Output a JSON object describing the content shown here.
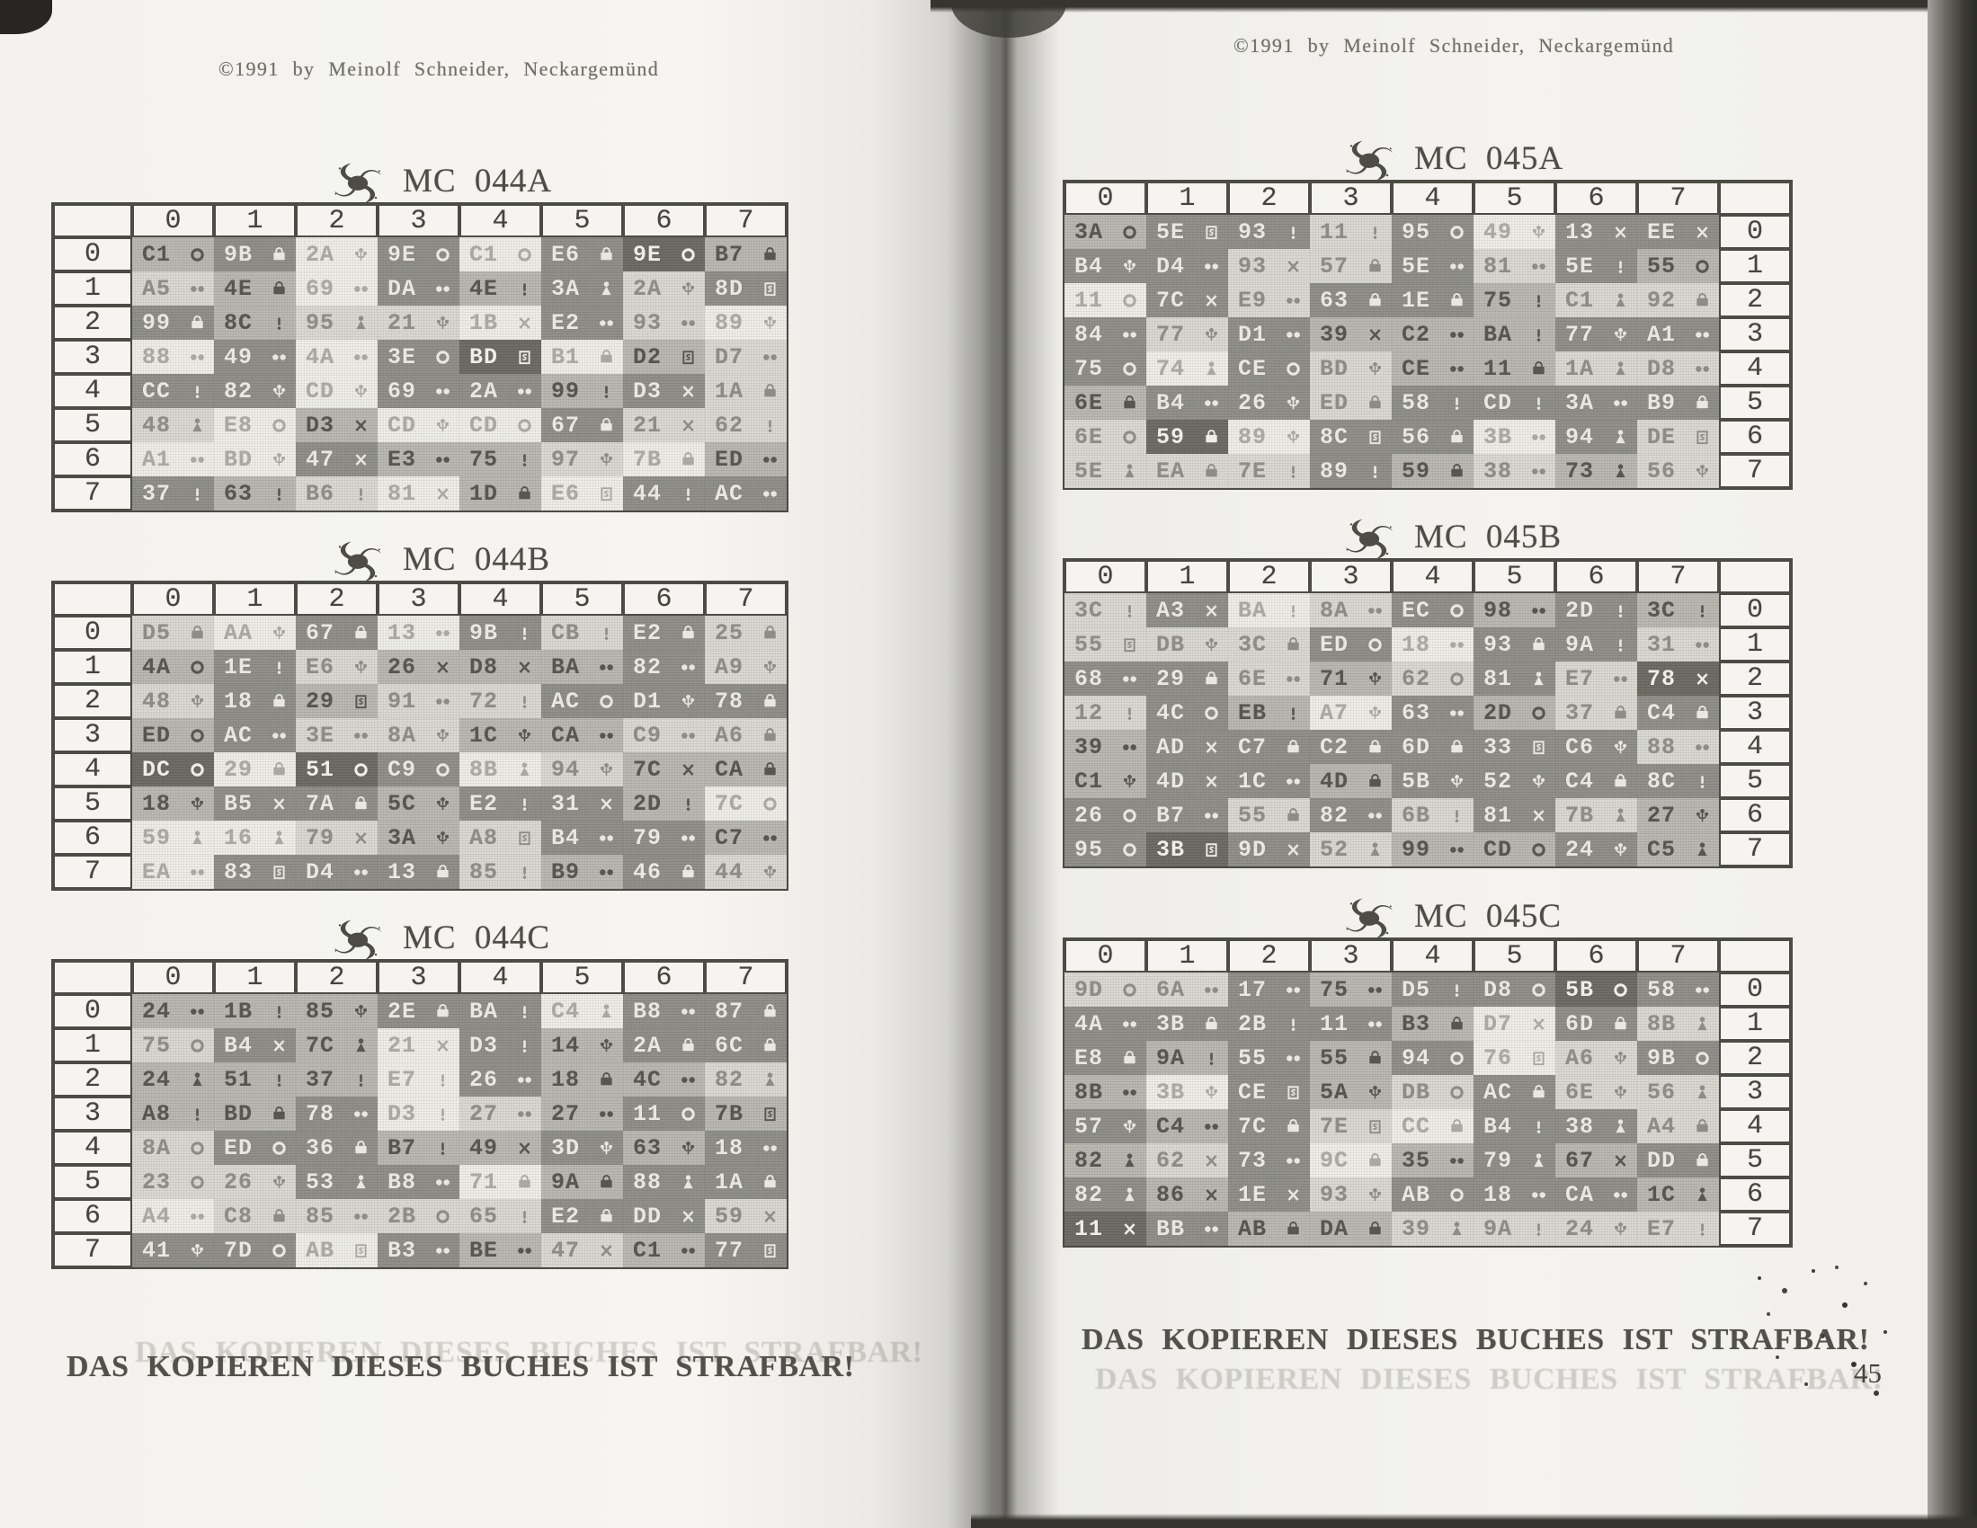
{
  "copyright_left": "©1991 by Meinolf Schneider, Neckargemünd",
  "copyright_right": "©1991 by Meinolf Schneider, Neckargemünd",
  "footer_left": "DAS KOPIEREN DIESES BUCHES IST STRAFBAR!",
  "footer_right": "DAS KOPIEREN DIESES BUCHES IST STRAFBAR!",
  "page_number": "45",
  "col_headers": [
    "0",
    "1",
    "2",
    "3",
    "4",
    "5",
    "6",
    "7"
  ],
  "row_headers": [
    "0",
    "1",
    "2",
    "3",
    "4",
    "5",
    "6",
    "7"
  ],
  "shade_colors": {
    "s0": "#eeede7",
    "s1": "#d8d7d0",
    "s2": "#b6b5ae",
    "s3": "#8c8b85",
    "s4": "#67665f"
  },
  "tables": [
    {
      "title": "MC 044A",
      "label_side": "left",
      "rows": [
        [
          "C1|ring|2",
          "9B|case|3",
          "2A|flower|0",
          "9E|ring|3",
          "C1|ring|0",
          "E6|case|3",
          "9E|ring|4",
          "B7|case|2"
        ],
        [
          "A5|pair|1",
          "4E|case|2",
          "69|pair|0",
          "DA|pair|3",
          "4E|pin|2",
          "3A|figure|3",
          "2A|flower|1",
          "8D|doc|3"
        ],
        [
          "99|case|3",
          "8C|pin|2",
          "95|figure|1",
          "21|flower|1",
          "1B|cross|0",
          "E2|pair|3",
          "93|pair|1",
          "89|flower|0"
        ],
        [
          "88|pair|0",
          "49|pair|3",
          "4A|pair|0",
          "3E|ring|3",
          "BD|doc|4",
          "B1|case|0",
          "D2|doc|2",
          "D7|pair|1"
        ],
        [
          "CC|pin|3",
          "82|flower|3",
          "CD|flower|0",
          "69|pair|3",
          "2A|pair|3",
          "99|pin|2",
          "D3|cross|3",
          "1A|case|1"
        ],
        [
          "48|figure|1",
          "E8|ring|0",
          "D3|cross|2",
          "CD|flower|0",
          "CD|ring|0",
          "67|case|3",
          "21|cross|1",
          "62|pin|1"
        ],
        [
          "A1|pair|0",
          "BD|flower|0",
          "47|cross|3",
          "E3|pair|2",
          "75|pin|2",
          "97|flower|1",
          "7B|case|0",
          "ED|pair|2"
        ],
        [
          "37|pin|3",
          "63|pin|2",
          "B6|pin|1",
          "81|cross|0",
          "1D|case|2",
          "E6|doc|0",
          "44|pin|3",
          "AC|pair|3"
        ]
      ]
    },
    {
      "title": "MC 044B",
      "label_side": "left",
      "rows": [
        [
          "D5|case|1",
          "AA|flower|0",
          "67|case|3",
          "13|pair|0",
          "9B|pin|3",
          "CB|pin|1",
          "E2|case|3",
          "25|case|1"
        ],
        [
          "4A|ring|2",
          "1E|pin|3",
          "E6|flower|1",
          "26|cross|2",
          "D8|cross|2",
          "BA|pair|2",
          "82|pair|3",
          "A9|flower|1"
        ],
        [
          "48|flower|1",
          "18|case|3",
          "29|doc|2",
          "91|pair|1",
          "72|pin|1",
          "AC|ring|3",
          "D1|flower|3",
          "78|case|3"
        ],
        [
          "ED|ring|2",
          "AC|pair|3",
          "3E|pair|1",
          "8A|flower|1",
          "1C|flower|2",
          "CA|pair|2",
          "C9|pair|1",
          "A6|case|1"
        ],
        [
          "DC|ring|4",
          "29|case|0",
          "51|ring|4",
          "C9|ring|3",
          "8B|figure|0",
          "94|flower|1",
          "7C|cross|2",
          "CA|case|2"
        ],
        [
          "18|flower|2",
          "B5|cross|3",
          "7A|case|3",
          "5C|flower|2",
          "E2|pin|3",
          "31|cross|3",
          "2D|pin|2",
          "7C|ring|0"
        ],
        [
          "59|figure|0",
          "16|figure|0",
          "79|cross|1",
          "3A|flower|2",
          "A8|doc|1",
          "B4|pair|3",
          "79|pair|3",
          "C7|pair|2"
        ],
        [
          "EA|pair|0",
          "83|doc|3",
          "D4|pair|3",
          "13|case|3",
          "85|pin|1",
          "B9|pair|2",
          "46|case|3",
          "44|flower|1"
        ]
      ]
    },
    {
      "title": "MC 044C",
      "label_side": "left",
      "rows": [
        [
          "24|pair|2",
          "1B|pin|2",
          "85|flower|2",
          "2E|case|3",
          "BA|pin|3",
          "C4|figure|0",
          "B8|pair|3",
          "87|case|3"
        ],
        [
          "75|ring|1",
          "B4|cross|3",
          "7C|figure|2",
          "21|cross|0",
          "D3|pin|3",
          "14|flower|2",
          "2A|case|3",
          "6C|case|3"
        ],
        [
          "24|figure|2",
          "51|pin|2",
          "37|pin|2",
          "E7|pin|0",
          "26|pair|3",
          "18|case|2",
          "4C|pair|2",
          "82|figure|1"
        ],
        [
          "A8|pin|2",
          "BD|case|2",
          "78|pair|3",
          "D3|pin|0",
          "27|pair|1",
          "27|pair|2",
          "11|ring|3",
          "7B|doc|2"
        ],
        [
          "8A|ring|1",
          "ED|ring|3",
          "36|case|3",
          "B7|pin|2",
          "49|cross|2",
          "3D|flower|3",
          "63|flower|2",
          "18|pair|3"
        ],
        [
          "23|ring|1",
          "26|flower|1",
          "53|figure|3",
          "B8|pair|3",
          "71|case|0",
          "9A|case|2",
          "88|figure|3",
          "1A|case|3"
        ],
        [
          "A4|pair|0",
          "C8|case|1",
          "85|pair|1",
          "2B|ring|1",
          "65|pin|1",
          "E2|case|3",
          "DD|cross|3",
          "59|cross|1"
        ],
        [
          "41|flower|3",
          "7D|ring|3",
          "AB|doc|0",
          "B3|pair|3",
          "BE|pair|2",
          "47|cross|1",
          "C1|pair|2",
          "77|doc|3"
        ]
      ]
    },
    {
      "title": "MC 045A",
      "label_side": "right",
      "rows": [
        [
          "3A|ring|2",
          "5E|doc|3",
          "93|pin|3",
          "11|pin|1",
          "95|ring|3",
          "49|flower|0",
          "13|cross|3",
          "EE|cross|3"
        ],
        [
          "B4|flower|3",
          "D4|pair|3",
          "93|cross|1",
          "57|case|1",
          "5E|pair|3",
          "81|pair|1",
          "5E|pin|3",
          "55|ring|2"
        ],
        [
          "11|ring|0",
          "7C|cross|3",
          "E9|pair|1",
          "63|case|3",
          "1E|case|3",
          "75|pin|2",
          "C1|figure|1",
          "92|case|1"
        ],
        [
          "84|pair|3",
          "77|flower|1",
          "D1|pair|3",
          "39|cross|2",
          "C2|pair|2",
          "BA|pin|2",
          "77|flower|3",
          "A1|pair|3"
        ],
        [
          "75|ring|3",
          "74|figure|0",
          "CE|ring|3",
          "BD|flower|1",
          "CE|pair|2",
          "11|case|2",
          "1A|figure|1",
          "D8|pair|1"
        ],
        [
          "6E|case|2",
          "B4|pair|3",
          "26|flower|3",
          "ED|case|1",
          "58|pin|3",
          "CD|pin|3",
          "3A|pair|3",
          "B9|case|3"
        ],
        [
          "6E|ring|1",
          "59|case|4",
          "89|flower|0",
          "8C|doc|3",
          "56|case|3",
          "3B|pair|0",
          "94|figure|3",
          "DE|doc|1"
        ],
        [
          "5E|figure|1",
          "EA|case|1",
          "7E|pin|1",
          "89|pin|3",
          "59|case|2",
          "38|pair|1",
          "73|figure|2",
          "56|flower|1"
        ]
      ]
    },
    {
      "title": "MC 045B",
      "label_side": "right",
      "rows": [
        [
          "3C|pin|1",
          "A3|cross|3",
          "BA|pin|0",
          "8A|pair|1",
          "EC|ring|3",
          "98|pair|2",
          "2D|pin|3",
          "3C|pin|2"
        ],
        [
          "55|doc|1",
          "DB|flower|1",
          "3C|case|1",
          "ED|ring|3",
          "18|pair|0",
          "93|case|3",
          "9A|pin|3",
          "31|pair|1"
        ],
        [
          "68|pair|3",
          "29|case|3",
          "6E|pair|1",
          "71|flower|2",
          "62|ring|1",
          "81|figure|3",
          "E7|pair|1",
          "78|cross|4"
        ],
        [
          "12|pin|1",
          "4C|ring|3",
          "EB|pin|2",
          "A7|flower|0",
          "63|pair|3",
          "2D|ring|2",
          "37|case|1",
          "C4|case|3"
        ],
        [
          "39|pair|2",
          "AD|cross|3",
          "C7|case|3",
          "C2|case|3",
          "6D|case|3",
          "33|doc|3",
          "C6|flower|3",
          "88|pair|1"
        ],
        [
          "C1|flower|2",
          "4D|cross|3",
          "1C|pair|3",
          "4D|case|2",
          "5B|flower|3",
          "52|flower|3",
          "C4|case|3",
          "8C|pin|3"
        ],
        [
          "26|ring|3",
          "B7|pair|3",
          "55|case|1",
          "82|pair|3",
          "6B|pin|1",
          "81|cross|3",
          "7B|figure|1",
          "27|flower|2"
        ],
        [
          "95|ring|3",
          "3B|doc|4",
          "9D|cross|3",
          "52|figure|1",
          "99|pair|2",
          "CD|ring|2",
          "24|flower|3",
          "C5|figure|2"
        ]
      ]
    },
    {
      "title": "MC 045C",
      "label_side": "right",
      "rows": [
        [
          "9D|ring|1",
          "6A|pair|1",
          "17|pair|3",
          "75|pair|2",
          "D5|pin|3",
          "D8|ring|3",
          "5B|ring|4",
          "58|pair|3"
        ],
        [
          "4A|pair|3",
          "3B|case|3",
          "2B|pin|3",
          "11|pair|3",
          "B3|case|2",
          "D7|cross|0",
          "6D|case|3",
          "8B|figure|1"
        ],
        [
          "E8|case|3",
          "9A|pin|2",
          "55|pair|3",
          "55|case|2",
          "94|ring|3",
          "76|doc|0",
          "A6|flower|1",
          "9B|ring|3"
        ],
        [
          "8B|pair|2",
          "3B|flower|0",
          "CE|doc|3",
          "5A|flower|2",
          "DB|ring|1",
          "AC|case|3",
          "6E|flower|1",
          "56|figure|1"
        ],
        [
          "57|flower|3",
          "C4|pair|2",
          "7C|case|3",
          "7E|doc|1",
          "CC|case|0",
          "B4|pin|3",
          "38|figure|3",
          "A4|case|1"
        ],
        [
          "82|figure|2",
          "62|cross|1",
          "73|pair|3",
          "9C|case|0",
          "35|pair|2",
          "79|figure|3",
          "67|cross|2",
          "DD|case|3"
        ],
        [
          "82|figure|3",
          "86|cross|2",
          "1E|cross|3",
          "93|flower|1",
          "AB|ring|3",
          "18|pair|3",
          "CA|pair|3",
          "1C|figure|2"
        ],
        [
          "11|cross|4",
          "BB|pair|3",
          "AB|case|2",
          "DA|case|2",
          "39|figure|1",
          "9A|pin|1",
          "24|flower|1",
          "E7|pin|1"
        ]
      ]
    }
  ]
}
